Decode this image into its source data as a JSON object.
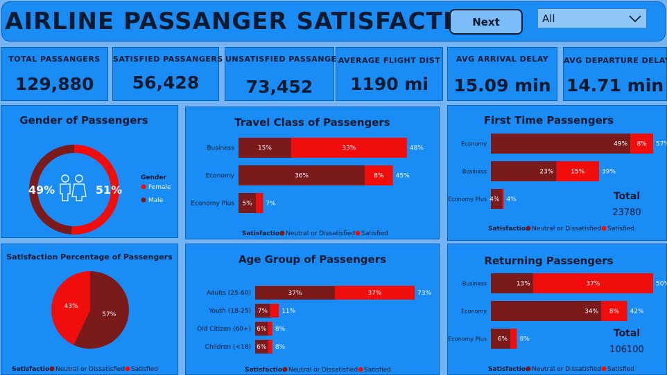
{
  "header": {
    "title": "AIRLINE PASSANGER SATISFACTION",
    "next_label": "Next",
    "filter_value": "All"
  },
  "kpis": [
    {
      "label": "TOTAL PASSANGERS",
      "value": "129,880"
    },
    {
      "label": "SATISFIED PASSANGERS",
      "value": "56,428"
    },
    {
      "label": "UNSATISFIED PASSANGERS",
      "value": "73,452"
    },
    {
      "label": "AVERAGE FLIGHT DIST",
      "value": "1190 mi"
    },
    {
      "label": "AVG ARRIVAL DELAY",
      "value": "15.09 min"
    },
    {
      "label": "AVG DEPARTURE DELAY",
      "value": "14.71 min"
    }
  ],
  "legend": {
    "title": "Satisfaction",
    "neutral": "Neutral or Dissatisfied",
    "satisfied": "Satisfied"
  },
  "colors": {
    "dark": "#7b1a1a",
    "bright": "#f20d0d",
    "panel": "#1a8cf5",
    "bg": "#74b4f6"
  },
  "icons": {
    "people": "people-icon",
    "dropdown": "chevron-down-icon"
  },
  "panels": {
    "gender": {
      "title": "Gender of Passengers",
      "legend_title": "Gender"
    },
    "satisfaction": {
      "title": "Satisfaction Percentage of Passengers"
    },
    "travel_class": {
      "title": "Travel Class of Passengers"
    },
    "age_group": {
      "title": "Age Group of Passengers"
    },
    "first_time": {
      "title": "First Time Passengers",
      "total_label": "Total",
      "total_value": "23780"
    },
    "returning": {
      "title": "Returning Passengers",
      "total_label": "Total",
      "total_value": "106100"
    }
  },
  "chart_data": [
    {
      "id": "gender",
      "type": "pie",
      "title": "Gender of Passengers",
      "legend_title": "Gender",
      "slices": [
        {
          "name": "Female",
          "value": 51,
          "label": "51%"
        },
        {
          "name": "Male",
          "value": 49,
          "label": "49%"
        }
      ]
    },
    {
      "id": "satisfaction",
      "type": "pie",
      "title": "Satisfaction Percentage of Passengers",
      "slices": [
        {
          "name": "Neutral or Dissatisfied",
          "value": 57,
          "label": "57%"
        },
        {
          "name": "Satisfied",
          "value": 43,
          "label": "43%"
        }
      ]
    },
    {
      "id": "travel_class",
      "type": "bar",
      "title": "Travel Class of Passengers",
      "categories": [
        "Business",
        "Economy",
        "Economy Plus"
      ],
      "series": [
        {
          "name": "Neutral or Dissatisfied",
          "values": [
            15,
            36,
            5
          ],
          "labels": [
            "15%",
            "36%",
            "5%"
          ]
        },
        {
          "name": "Satisfied",
          "values": [
            33,
            8,
            2
          ],
          "labels": [
            "33%",
            "8%",
            ""
          ]
        }
      ],
      "totals": [
        "48%",
        "45%",
        "7%"
      ],
      "xlim": [
        0,
        50
      ]
    },
    {
      "id": "age_group",
      "type": "bar",
      "title": "Age Group of Passengers",
      "categories": [
        "Adults (25-60)",
        "Youth (18-25)",
        "Old Citizen (60+)",
        "Children (<18)"
      ],
      "series": [
        {
          "name": "Neutral or Dissatisfied",
          "values": [
            37,
            7,
            6,
            6
          ],
          "labels": [
            "37%",
            "7%",
            "6%",
            "6%"
          ]
        },
        {
          "name": "Satisfied",
          "values": [
            37,
            4,
            2,
            2
          ],
          "labels": [
            "37%",
            "",
            "",
            ""
          ]
        }
      ],
      "totals": [
        "73%",
        "11%",
        "8%",
        "8%"
      ],
      "xlim": [
        0,
        74
      ]
    },
    {
      "id": "first_time",
      "type": "bar",
      "title": "First Time Passengers",
      "categories": [
        "Economy",
        "Business",
        "Economy Plus"
      ],
      "series": [
        {
          "name": "Neutral or Dissatisfied",
          "values": [
            49,
            23,
            4
          ],
          "labels": [
            "49%",
            "23%",
            "4%"
          ]
        },
        {
          "name": "Satisfied",
          "values": [
            8,
            15,
            0.5
          ],
          "labels": [
            "8%",
            "15%",
            ""
          ]
        }
      ],
      "totals": [
        "57%",
        "39%",
        "4%"
      ],
      "xlim": [
        0,
        57
      ]
    },
    {
      "id": "returning",
      "type": "bar",
      "title": "Returning Passengers",
      "categories": [
        "Business",
        "Economy",
        "Economy Plus"
      ],
      "series": [
        {
          "name": "Neutral or Dissatisfied",
          "values": [
            13,
            34,
            6
          ],
          "labels": [
            "13%",
            "34%",
            "6%"
          ]
        },
        {
          "name": "Satisfied",
          "values": [
            37,
            8,
            2
          ],
          "labels": [
            "37%",
            "8%",
            ""
          ]
        }
      ],
      "totals": [
        "50%",
        "42%",
        "8%"
      ],
      "xlim": [
        0,
        50
      ]
    }
  ]
}
